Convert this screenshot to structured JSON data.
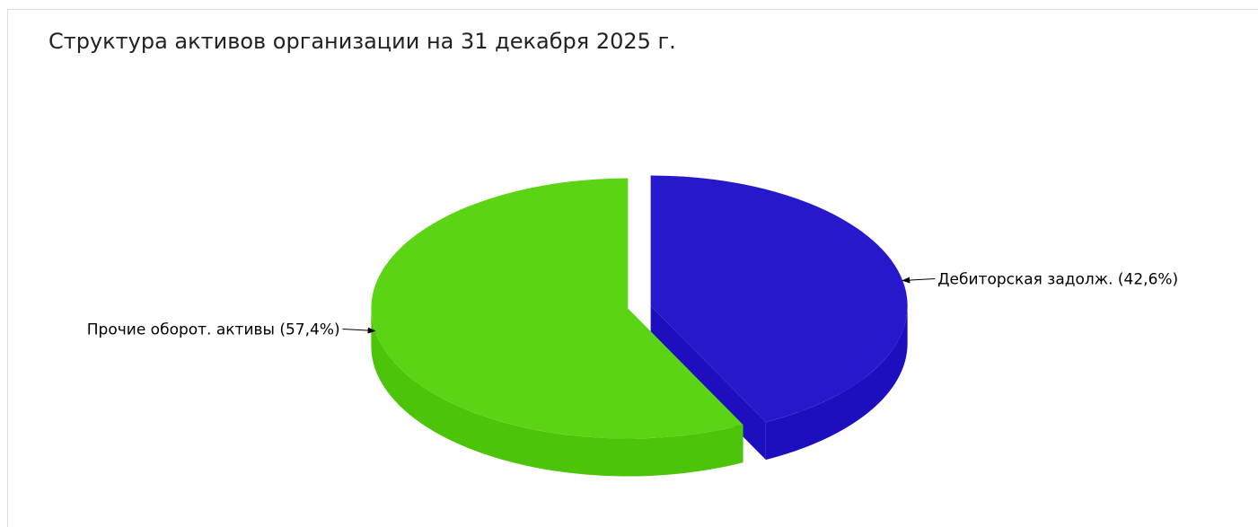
{
  "chart_data": {
    "type": "pie",
    "title": "Структура активов организации на 31 декабря 2025 г.",
    "slices": [
      {
        "label": "Дебиторская задолж. (42,6%)",
        "value": 42.6,
        "color": "#2718cc",
        "side_color": "#1d0fc0",
        "exploded": true
      },
      {
        "label": "Прочие оборот. активы (57,4%)",
        "value": 57.4,
        "color": "#5cd416",
        "side_color": "#4cc40a",
        "exploded": true
      }
    ]
  }
}
